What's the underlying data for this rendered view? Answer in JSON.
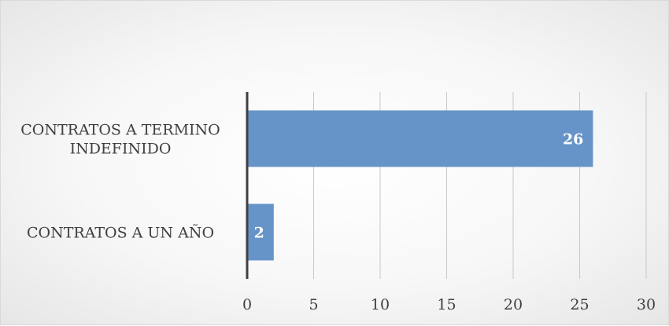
{
  "chart_data": {
    "type": "bar",
    "orientation": "horizontal",
    "categories": [
      [
        "CONTRATOS A TERMINO",
        "INDEFINIDO"
      ],
      [
        "CONTRATOS A UN AÑO"
      ]
    ],
    "values": [
      26,
      2
    ],
    "xlim": [
      0,
      30
    ],
    "xticks": [
      0,
      5,
      10,
      15,
      20,
      25,
      30
    ],
    "grid": "vertical",
    "data_labels": true,
    "colors": {
      "bar": "#6694c8",
      "grid": "#c8c8c8",
      "axis": "#404040",
      "text": "#404040"
    }
  }
}
